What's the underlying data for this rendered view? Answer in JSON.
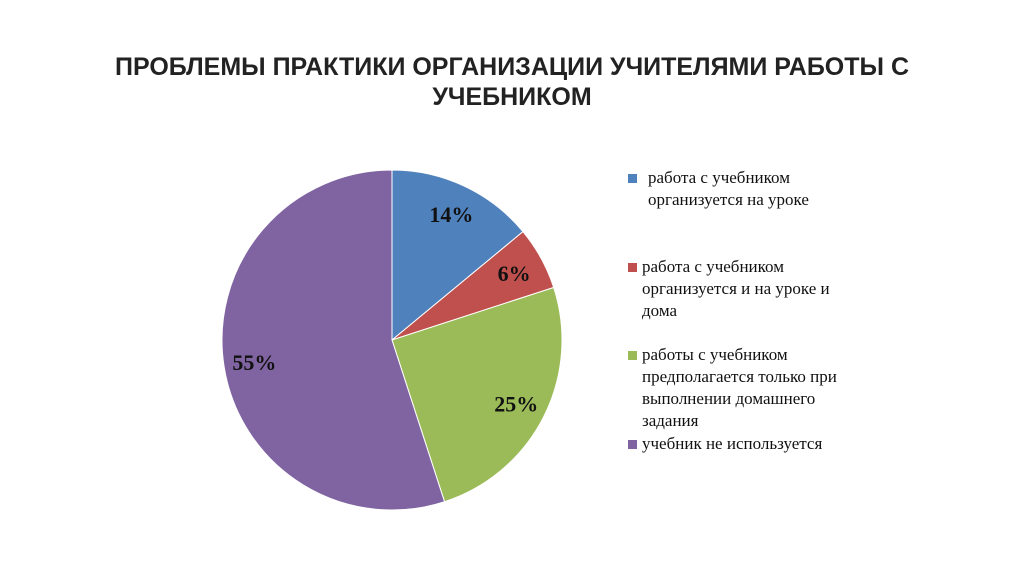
{
  "chart_data": {
    "type": "pie",
    "title": "ПРОБЛЕМЫ ПРАКТИКИ ОРГАНИЗАЦИИ УЧИТЕЛЯМИ РАБОТЫ С УЧЕБНИКОМ",
    "categories": [
      "работа с учебником организуется  на уроке",
      "работа с учебником организуется и на уроке и дома",
      "работы с учебником предполагается только при выполнении домашнего задания",
      "учебник не используется"
    ],
    "values": [
      14,
      6,
      25,
      55
    ],
    "data_labels": [
      "14%",
      "6%",
      "25%",
      "55%"
    ],
    "colors": [
      "#4f81bd",
      "#c0504d",
      "#9bbb59",
      "#8064a2"
    ],
    "legend_position": "right"
  }
}
